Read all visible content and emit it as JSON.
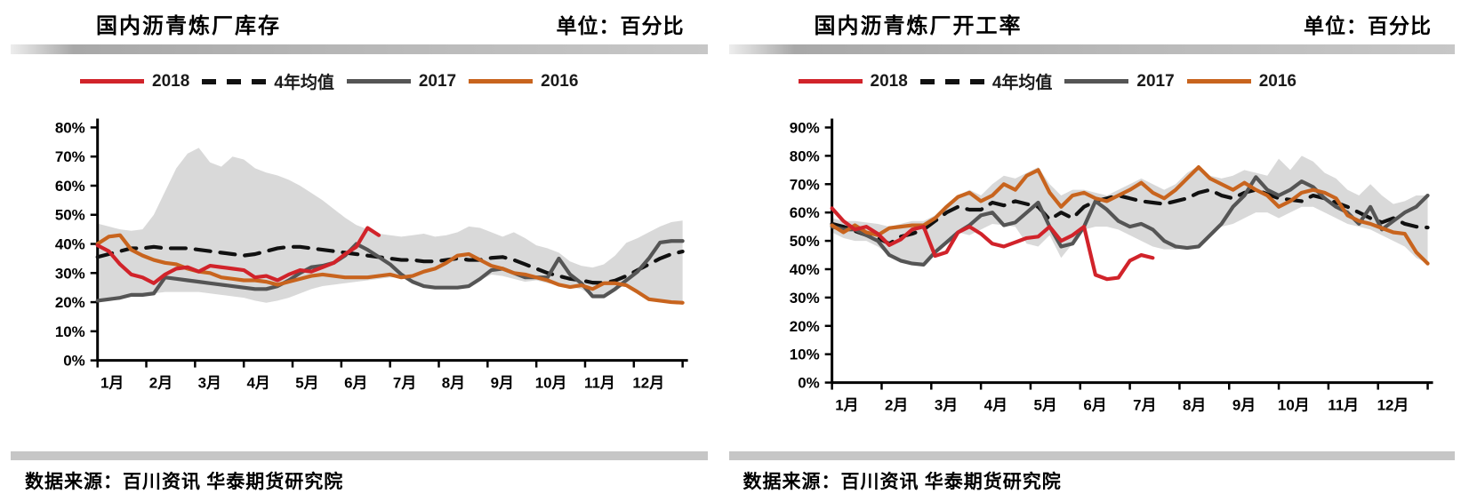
{
  "chart_data": [
    {
      "type": "line",
      "title": "国内沥青炼厂库存",
      "unit": "单位：百分比",
      "source_note": "数据来源：百川资讯 华泰期货研究院",
      "x_months": [
        "1月",
        "2月",
        "3月",
        "4月",
        "5月",
        "6月",
        "7月",
        "8月",
        "9月",
        "10月",
        "11月",
        "12月"
      ],
      "n_points": 53,
      "ylim": [
        0,
        80
      ],
      "ytick_step": 10,
      "ytick_labels": [
        "0%",
        "10%",
        "20%",
        "30%",
        "40%",
        "50%",
        "60%",
        "70%",
        "80%"
      ],
      "grid": false,
      "legend_position": "top",
      "band": {
        "name": "4-year-min-max-range",
        "color": "#d9d9d9",
        "upper": [
          47,
          46,
          45,
          44.5,
          45,
          50,
          58,
          66,
          71,
          73,
          68,
          66.5,
          70,
          69,
          66,
          64.5,
          63.5,
          62,
          60,
          57.5,
          55,
          52,
          49,
          46.5,
          45,
          43.5,
          43,
          42.5,
          43,
          43.5,
          42.5,
          43,
          44,
          46,
          45.5,
          44,
          42.5,
          44,
          42,
          39.5,
          38.5,
          37,
          34,
          32.5,
          31.9,
          33,
          36,
          40.4,
          42,
          44,
          46,
          47.5,
          48
        ],
        "lower": [
          20.5,
          21,
          21.5,
          22,
          22.5,
          23,
          23.5,
          23.5,
          23.5,
          23.5,
          23,
          22.5,
          22,
          21.5,
          20.5,
          19.8,
          20.5,
          21.5,
          23,
          24.5,
          25.5,
          26,
          26.5,
          27,
          27.5,
          28,
          28.5,
          28.5,
          27,
          25.5,
          25,
          25,
          25,
          25.5,
          27.5,
          29.5,
          29,
          28,
          27,
          27.5,
          26.5,
          26,
          25.2,
          24.5,
          22,
          22,
          24.5,
          25.8,
          23.5,
          21,
          20.5,
          20,
          19.1
        ]
      },
      "series": [
        {
          "name": "2018",
          "color": "#d1232a",
          "dash": false,
          "values": [
            39.5,
            37.5,
            33,
            29.5,
            28.5,
            26.5,
            29.5,
            31.5,
            32,
            30.5,
            32.5,
            32,
            31.5,
            31,
            28.5,
            29,
            27.5,
            29.5,
            31,
            30.5,
            32,
            33.5,
            36.5,
            39,
            45.5,
            43
          ]
        },
        {
          "name": "4年均值",
          "color": "#111111",
          "dash": true,
          "values": [
            35.5,
            36.5,
            37.5,
            38.5,
            38.5,
            39,
            38.5,
            38.5,
            38.5,
            38,
            37.5,
            37,
            36.5,
            36,
            36.5,
            37.5,
            38.5,
            39,
            39,
            38.5,
            38,
            37.5,
            37,
            36.5,
            36,
            35.5,
            35,
            34.5,
            34.5,
            34,
            34,
            34.5,
            35,
            34.5,
            34.5,
            35.2,
            35.5,
            34.5,
            33,
            31.5,
            30,
            29,
            28,
            27.5,
            26.7,
            26.6,
            27.4,
            29,
            31,
            33,
            35,
            36.5,
            37.4
          ]
        },
        {
          "name": "2017",
          "color": "#555555",
          "dash": false,
          "values": [
            20.5,
            21,
            21.5,
            22.5,
            22.5,
            23,
            28.5,
            28,
            27.5,
            27,
            26.5,
            26,
            25.5,
            25,
            24.5,
            24.5,
            25.5,
            27.5,
            30,
            32,
            32.5,
            33.5,
            36,
            40,
            38,
            35.5,
            33,
            29.5,
            27,
            25.5,
            25,
            25,
            25,
            25.5,
            28,
            31,
            31.5,
            30,
            28.5,
            28.5,
            28.5,
            35,
            29.5,
            26.5,
            22,
            22,
            24.5,
            27.5,
            30.5,
            35,
            40.5,
            41,
            41
          ]
        },
        {
          "name": "2016",
          "color": "#c8641e",
          "dash": false,
          "values": [
            40,
            42.5,
            43,
            38,
            36,
            34.5,
            33.5,
            33,
            31.5,
            30.5,
            30,
            28.5,
            28,
            27.5,
            27.5,
            27,
            26,
            27,
            28,
            29,
            29.5,
            29,
            28.5,
            28.5,
            28.5,
            29,
            29.5,
            28.5,
            29,
            30.5,
            31.5,
            33.5,
            36,
            36.5,
            34.5,
            32.5,
            31.5,
            30,
            29.5,
            28.5,
            27.5,
            26,
            25.2,
            25.8,
            24.5,
            26.5,
            26.5,
            25.8,
            23.5,
            21,
            20.5,
            20,
            19.8
          ]
        }
      ]
    },
    {
      "type": "line",
      "title": "国内沥青炼厂开工率",
      "unit": "单位：百分比",
      "source_note": "数据来源：百川资讯 华泰期货研究院",
      "x_months": [
        "1月",
        "2月",
        "3月",
        "4月",
        "5月",
        "6月",
        "7月",
        "8月",
        "9月",
        "10月",
        "11月",
        "12月"
      ],
      "n_points": 53,
      "ylim": [
        0,
        90
      ],
      "ytick_step": 10,
      "ytick_labels": [
        "0%",
        "10%",
        "20%",
        "30%",
        "40%",
        "50%",
        "60%",
        "70%",
        "80%",
        "90%"
      ],
      "grid": false,
      "legend_position": "top",
      "band": {
        "name": "4-year-min-max-range",
        "color": "#d9d9d9",
        "upper": [
          58,
          57,
          57,
          56.5,
          56,
          55,
          56,
          57,
          57,
          59,
          63,
          66,
          68,
          66,
          70,
          73,
          72,
          74,
          76,
          70,
          66,
          68,
          68,
          67,
          66,
          68,
          70,
          72,
          70,
          68,
          70,
          74,
          76.5,
          73,
          72,
          73,
          75,
          74,
          73,
          79,
          75,
          80,
          78,
          74,
          72,
          68,
          66,
          70,
          66,
          63,
          64,
          66,
          66
        ],
        "lower": [
          53,
          51,
          50,
          50,
          48,
          45,
          43,
          42,
          41.6,
          46,
          49.5,
          53,
          52,
          54,
          56,
          55.5,
          55,
          49,
          48,
          52,
          44,
          49,
          54,
          55,
          55,
          54,
          52,
          50,
          48,
          47,
          47,
          47.5,
          48,
          52,
          55,
          56,
          58,
          60,
          60,
          58,
          60,
          62,
          62,
          60,
          58,
          56,
          55,
          54,
          52,
          50,
          48,
          44,
          42
        ]
      },
      "series": [
        {
          "name": "2018",
          "color": "#d1232a",
          "dash": false,
          "values": [
            61.5,
            57,
            54,
            55,
            52.5,
            48.5,
            50.5,
            54,
            55,
            44.7,
            46,
            53,
            55,
            52.5,
            49,
            48,
            49.5,
            51,
            51.5,
            55,
            50,
            52,
            55,
            38,
            36.5,
            37,
            43,
            45,
            44
          ]
        },
        {
          "name": "4年均值",
          "color": "#111111",
          "dash": true,
          "values": [
            56,
            55,
            53.5,
            52,
            51,
            49,
            51.5,
            52.5,
            54,
            57,
            60,
            62,
            61,
            61,
            63.5,
            62.5,
            64,
            63,
            62,
            57.5,
            60,
            58,
            62,
            64,
            65,
            66,
            65,
            64,
            63.5,
            63,
            64,
            65,
            67,
            68,
            66,
            65,
            67,
            68,
            66.5,
            65,
            64.5,
            64,
            66,
            65,
            63.5,
            62,
            60,
            58,
            56.5,
            58,
            56,
            55,
            54.7
          ]
        },
        {
          "name": "2017",
          "color": "#555555",
          "dash": false,
          "values": [
            55,
            54,
            54,
            52,
            50,
            45,
            43,
            42,
            41.6,
            46,
            49.5,
            53,
            55.5,
            59,
            60,
            55.5,
            56.5,
            60,
            63.5,
            55,
            48,
            49,
            55,
            64,
            61,
            57,
            55,
            56,
            54,
            50,
            48,
            47.5,
            48,
            52,
            56,
            62,
            66,
            72.5,
            68,
            66,
            68,
            71,
            69,
            65,
            62,
            60,
            56,
            62,
            54,
            57,
            60,
            62,
            66
          ]
        },
        {
          "name": "2016",
          "color": "#c8641e",
          "dash": false,
          "values": [
            55.5,
            53,
            55.5,
            53,
            52,
            54.5,
            55,
            55.5,
            55.5,
            58,
            62,
            65.5,
            67,
            64,
            66,
            70,
            68,
            73,
            75,
            67,
            62,
            66,
            67,
            65,
            64,
            66,
            68,
            70.5,
            67,
            65,
            68,
            72,
            76,
            72,
            70,
            68,
            70.5,
            68,
            66,
            62,
            64,
            67,
            68,
            67,
            65,
            59,
            57,
            56,
            54.5,
            53,
            52.5,
            46,
            42
          ]
        }
      ]
    }
  ]
}
